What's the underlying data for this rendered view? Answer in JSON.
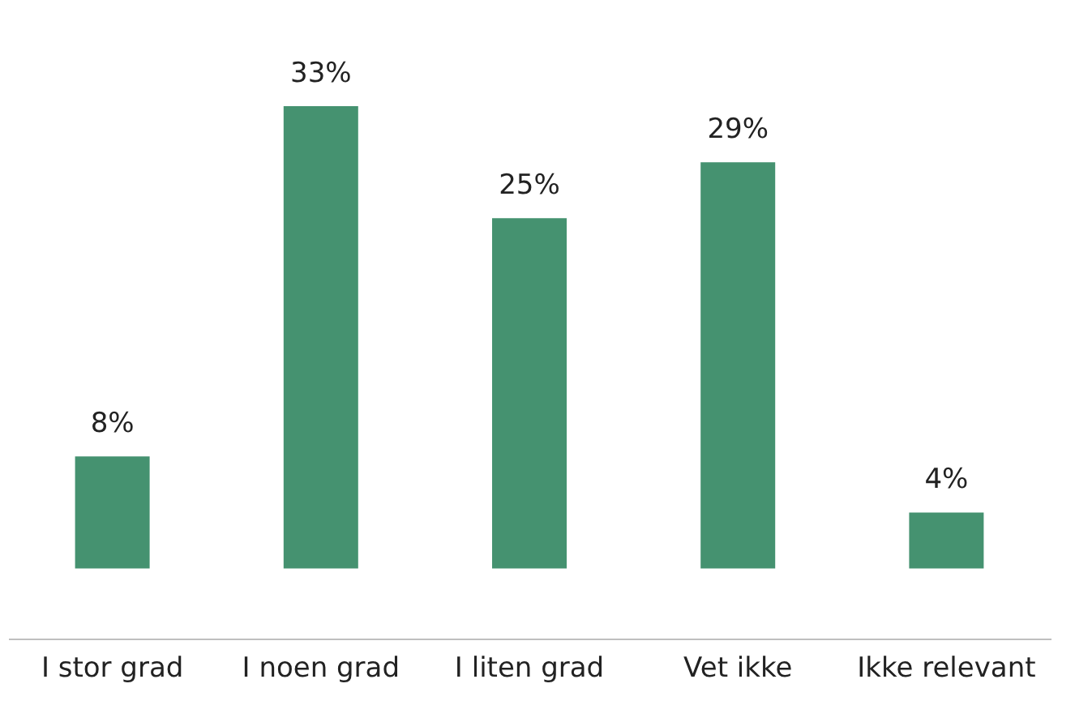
{
  "chart_data": {
    "type": "bar",
    "categories": [
      "I stor grad",
      "I noen grad",
      "I liten grad",
      "Vet ikke",
      "Ikke relevant"
    ],
    "values": [
      8,
      33,
      25,
      29,
      4
    ],
    "value_labels": [
      "8%",
      "33%",
      "25%",
      "29%",
      "4%"
    ],
    "color": "#459270",
    "grid": false
  }
}
